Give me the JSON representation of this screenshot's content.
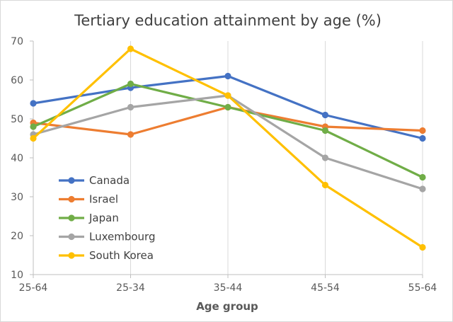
{
  "chart_data": {
    "type": "line",
    "title": "Tertiary education attainment by age (%)",
    "xlabel": "Age group",
    "ylabel": "",
    "categories": [
      "25-64",
      "25-34",
      "35-44",
      "45-54",
      "55-64"
    ],
    "ylim": [
      10,
      70
    ],
    "yticks": [
      10,
      20,
      30,
      40,
      50,
      60,
      70
    ],
    "grid": "vertical",
    "legend_position": "lower-left",
    "series": [
      {
        "name": "Canada",
        "color": "#4472C4",
        "values": [
          54,
          58,
          61,
          51,
          45
        ]
      },
      {
        "name": "Israel",
        "color": "#ED7D31",
        "values": [
          49,
          46,
          53,
          48,
          47
        ]
      },
      {
        "name": "Japan",
        "color": "#70AD47",
        "values": [
          48,
          59,
          53,
          47,
          35
        ]
      },
      {
        "name": "Luxembourg",
        "color": "#A5A5A5",
        "values": [
          46,
          53,
          56,
          40,
          32
        ]
      },
      {
        "name": "South Korea",
        "color": "#FFC000",
        "values": [
          45,
          68,
          56,
          33,
          17
        ]
      }
    ]
  }
}
